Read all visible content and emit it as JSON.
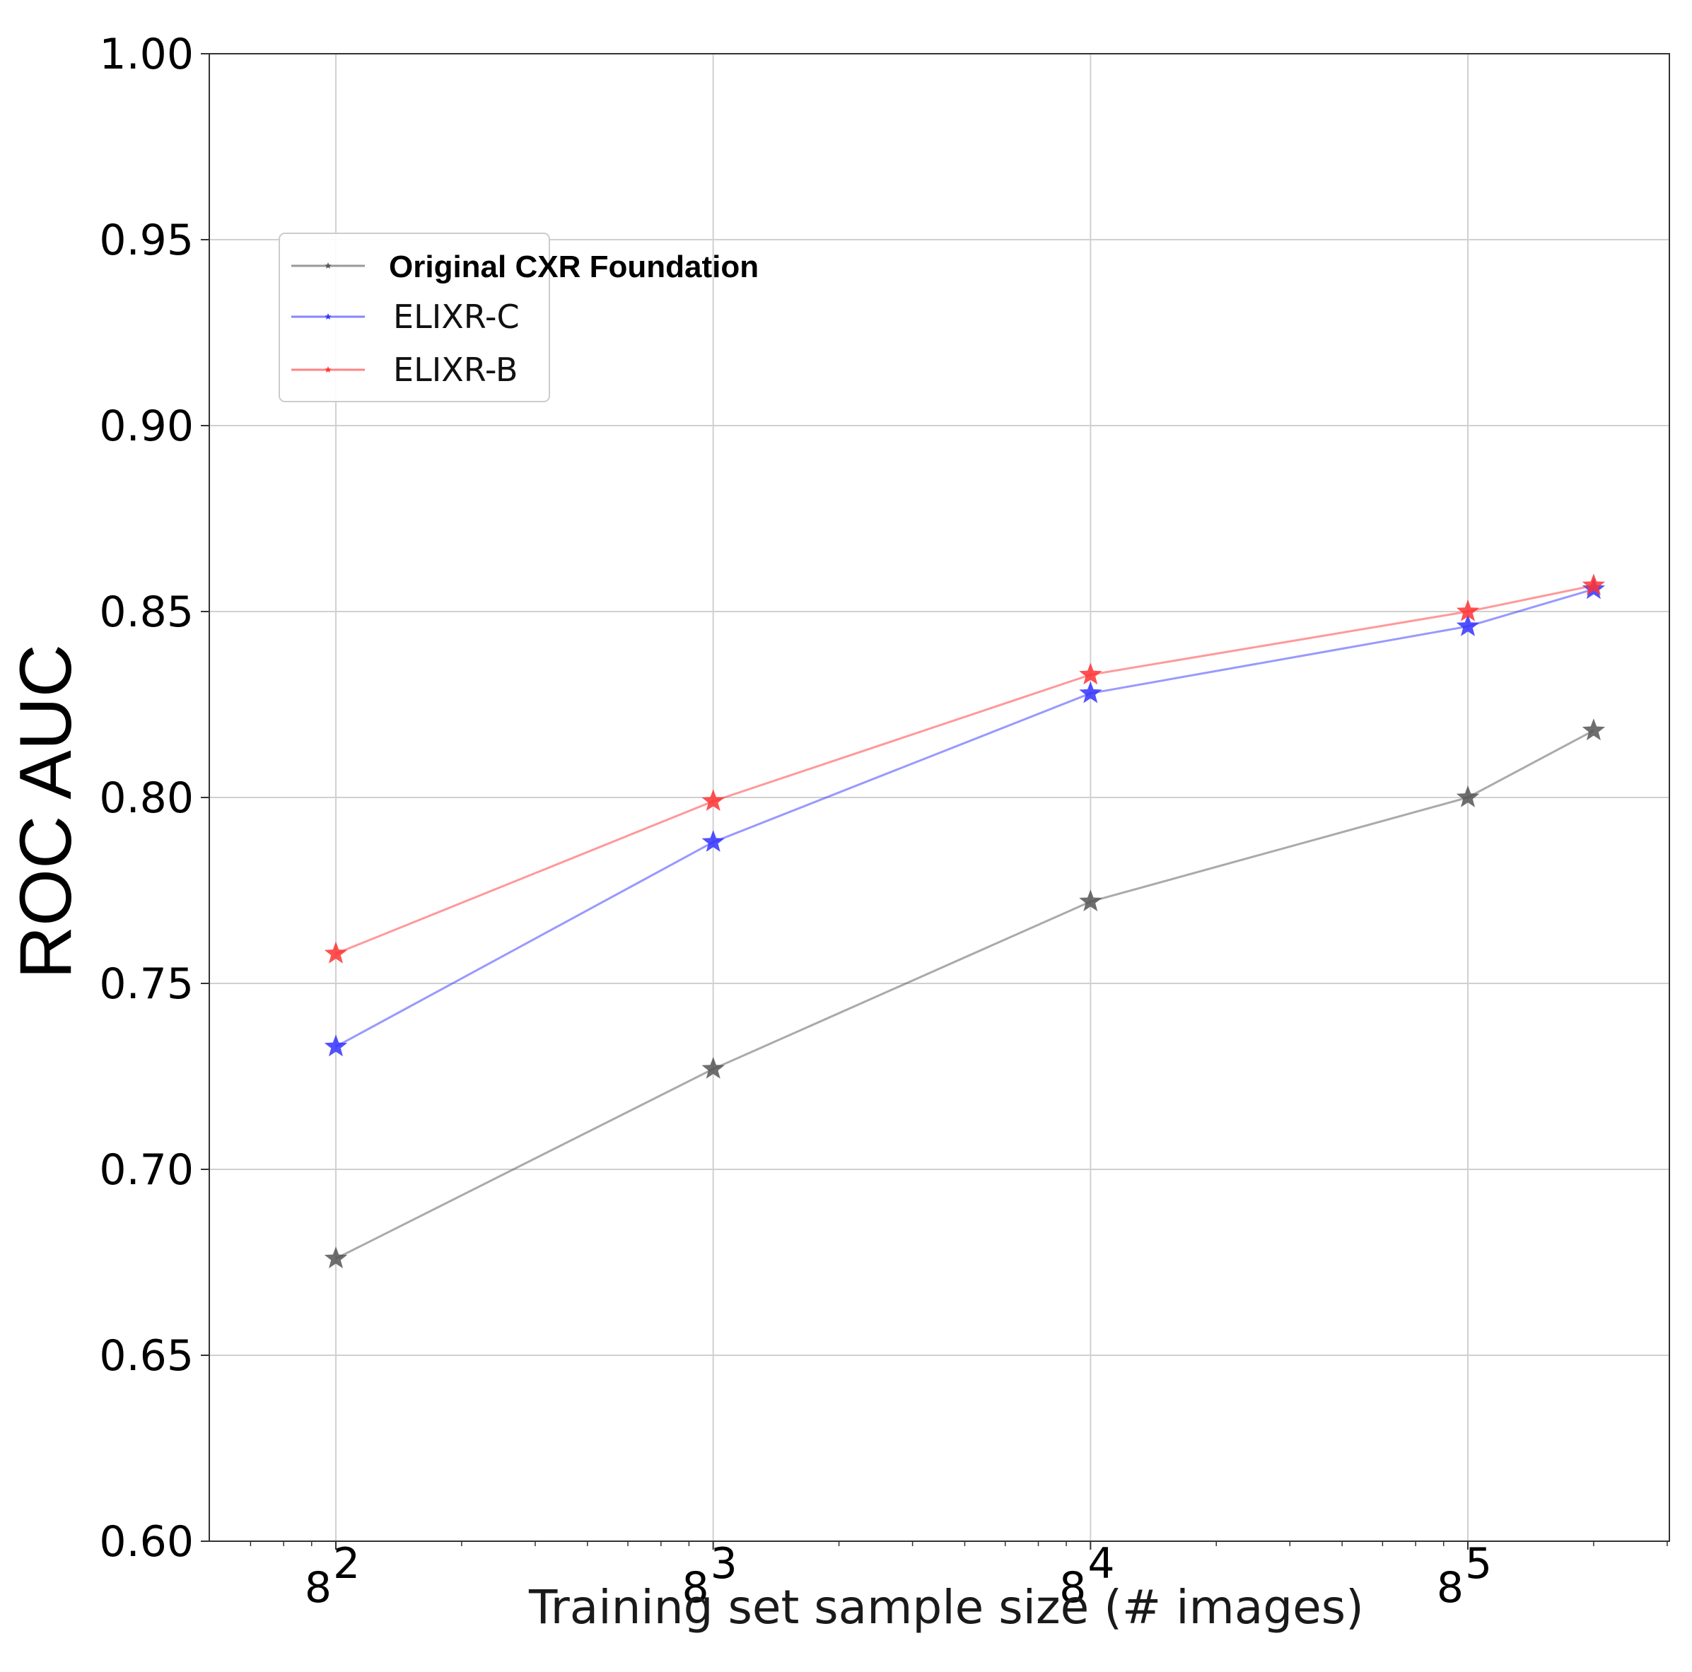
{
  "chart_data": {
    "type": "line",
    "xlabel": "Training set sample size (# images)",
    "ylabel": "ROC AUC",
    "x_scale": "log8",
    "xlim": [
      40,
      400000
    ],
    "ylim": [
      0.6,
      1.0
    ],
    "grid": true,
    "legend_position": "upper-left",
    "x_ticks": [
      {
        "value": 64,
        "base": "8",
        "exp": "2"
      },
      {
        "value": 512,
        "base": "8",
        "exp": "3"
      },
      {
        "value": 4096,
        "base": "8",
        "exp": "4"
      },
      {
        "value": 32768,
        "base": "8",
        "exp": "5"
      }
    ],
    "y_ticks": [
      "0.60",
      "0.65",
      "0.70",
      "0.75",
      "0.80",
      "0.85",
      "0.90",
      "0.95",
      "1.00"
    ],
    "x": [
      64,
      512,
      4096,
      32768,
      65536
    ],
    "series": [
      {
        "name": "Original CXR Foundation",
        "color": "#555555",
        "values": [
          0.676,
          0.727,
          0.772,
          0.8,
          0.818
        ]
      },
      {
        "name": "ELIXR-C",
        "color": "#3333ff",
        "values": [
          0.733,
          0.788,
          0.828,
          0.846,
          0.856
        ]
      },
      {
        "name": "ELIXR-B",
        "color": "#ff3333",
        "values": [
          0.758,
          0.799,
          0.833,
          0.85,
          0.857
        ]
      }
    ]
  }
}
